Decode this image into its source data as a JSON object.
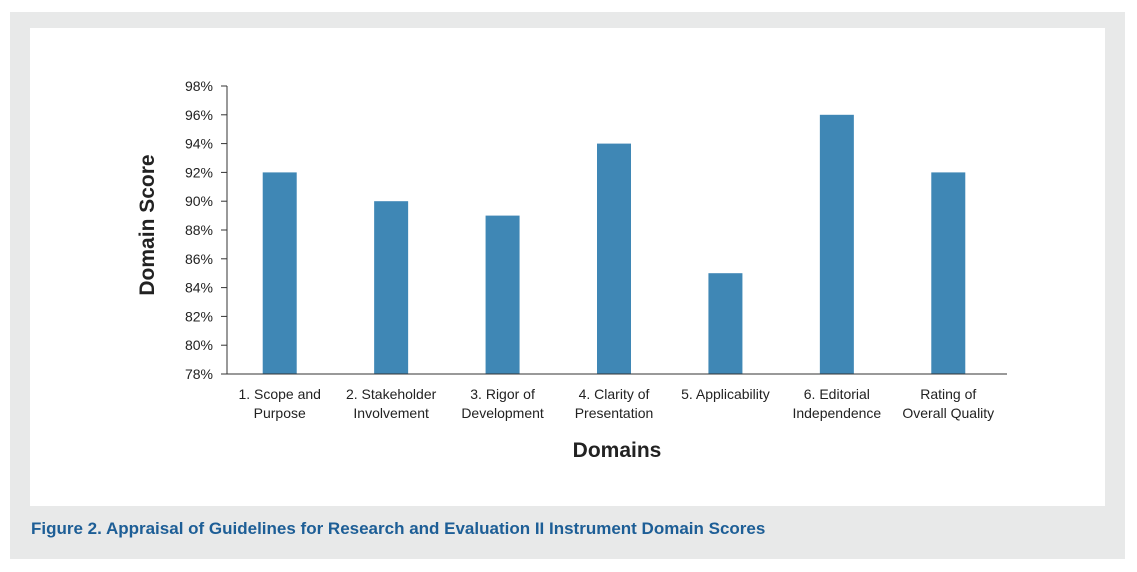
{
  "figure": {
    "caption": "Figure 2. Appraisal of Guidelines for Research and Evaluation II Instrument Domain Scores"
  },
  "colors": {
    "bar": "#3f87b5",
    "frame": "#e8e9e9",
    "caption": "#1d5e96",
    "axis": "#333333"
  },
  "chart_data": {
    "type": "bar",
    "title": "",
    "xlabel": "Domains",
    "ylabel": "Domain Score",
    "ylim": [
      78,
      98
    ],
    "y_unit": "%",
    "yticks": [
      "78%",
      "80%",
      "82%",
      "84%",
      "86%",
      "88%",
      "90%",
      "92%",
      "94%",
      "96%",
      "98%"
    ],
    "grid": false,
    "legend": "none",
    "categories": [
      [
        "1. Scope and",
        "Purpose"
      ],
      [
        "2. Stakeholder",
        "Involvement"
      ],
      [
        "3. Rigor of",
        "Development"
      ],
      [
        "4. Clarity of",
        "Presentation"
      ],
      [
        "5. Applicability"
      ],
      [
        "6. Editorial",
        "Independence"
      ],
      [
        "Rating of",
        "Overall Quality"
      ]
    ],
    "values": [
      92,
      90,
      89,
      94,
      85,
      96,
      92
    ]
  }
}
